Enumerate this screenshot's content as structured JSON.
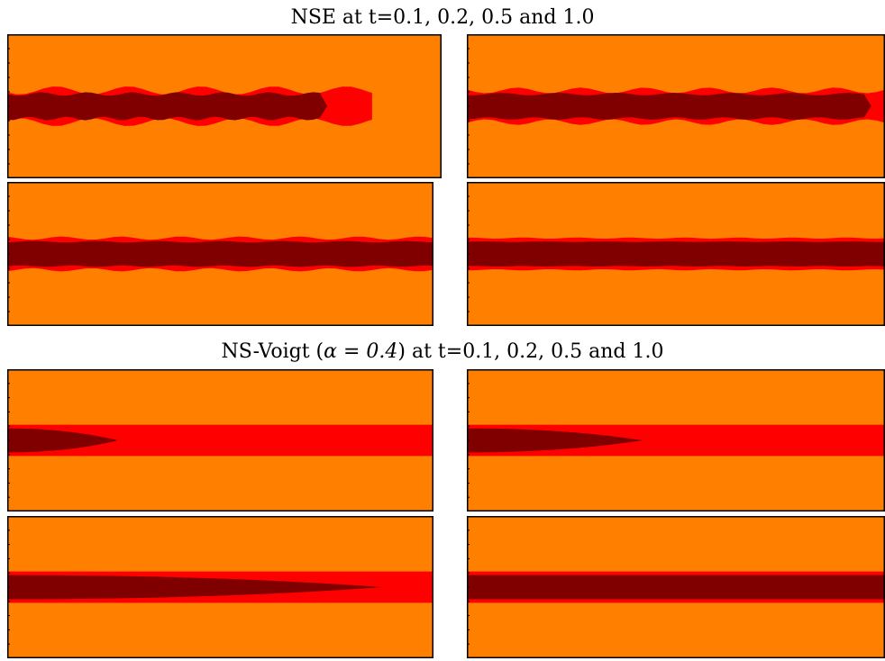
{
  "figure": {
    "titles": [
      {
        "prefix": "NSE at t=0.1, 0.2, 0.5 and 1.0"
      },
      {
        "prefix": "NS-Voigt (",
        "math": "α = 0.4",
        "suffix": ") at t=0.1, 0.2, 0.5 and 1.0"
      }
    ]
  },
  "chart_data": {
    "type": "heatmap",
    "colormap": "jet",
    "colormap_stops": [
      "#00008f",
      "#0000ff",
      "#0080ff",
      "#00ffff",
      "#80ff80",
      "#ffff00",
      "#ff8000",
      "#ff0000",
      "#800000"
    ],
    "groups": [
      {
        "title": "NSE at t=0.1, 0.2, 0.5 and 1.0",
        "panels": [
          {
            "t": 0.1,
            "flow": "nse",
            "core_length": 0.72,
            "noise": 1.0
          },
          {
            "t": 0.2,
            "flow": "nse",
            "core_length": 0.95,
            "noise": 0.7
          },
          {
            "t": 0.5,
            "flow": "nse",
            "core_length": 1.0,
            "noise": 0.4
          },
          {
            "t": 1.0,
            "flow": "nse",
            "core_length": 1.0,
            "noise": 0.15
          }
        ]
      },
      {
        "title": "NS-Voigt (α = 0.4) at t=0.1, 0.2, 0.5 and 1.0",
        "panels": [
          {
            "t": 0.1,
            "flow": "voigt",
            "core_length": 0.26,
            "noise": 0.0
          },
          {
            "t": 0.2,
            "flow": "voigt",
            "core_length": 0.42,
            "noise": 0.0
          },
          {
            "t": 0.5,
            "flow": "voigt",
            "core_length": 0.88,
            "noise": 0.0
          },
          {
            "t": 1.0,
            "flow": "voigt",
            "core_length": 1.0,
            "noise": 0.0
          }
        ]
      }
    ]
  }
}
